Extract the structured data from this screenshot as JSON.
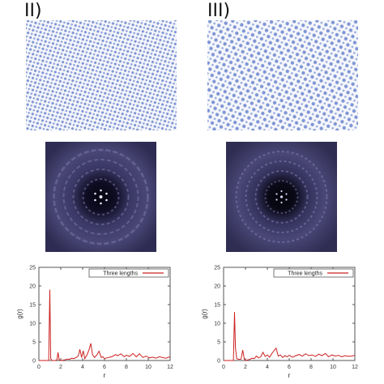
{
  "panels": [
    {
      "label": "II)",
      "chart_data": {
        "type": "line",
        "xlabel": "r",
        "ylabel": "g(r)",
        "xlim": [
          0,
          12
        ],
        "ylim": [
          0,
          25
        ],
        "xticks": [
          "0",
          "2",
          "4",
          "6",
          "8",
          "10",
          "12"
        ],
        "yticks": [
          "0",
          "5",
          "10",
          "15",
          "20",
          "25"
        ],
        "legend_position": "top-right",
        "series": [
          {
            "name": "Three lengths",
            "color": "#cc2222",
            "x": [
              0,
              0.9,
              1.0,
              1.08,
              1.2,
              1.5,
              1.65,
              1.75,
              1.85,
              2.0,
              2.4,
              2.6,
              2.8,
              3.0,
              3.2,
              3.4,
              3.6,
              3.75,
              3.9,
              4.05,
              4.2,
              4.4,
              4.6,
              4.75,
              4.9,
              5.1,
              5.3,
              5.5,
              5.7,
              5.85,
              6.0,
              6.2,
              6.5,
              6.8,
              7.0,
              7.2,
              7.5,
              7.8,
              8.0,
              8.3,
              8.6,
              8.9,
              9.2,
              9.5,
              9.8,
              10.1,
              10.4,
              10.7,
              11.0,
              11.3,
              11.6,
              12.0
            ],
            "y": [
              0,
              0,
              19.0,
              0.5,
              0,
              0,
              0.2,
              2.2,
              0.2,
              0,
              0.2,
              0.4,
              0.3,
              0.6,
              0.5,
              0.8,
              1.2,
              3.0,
              0.8,
              2.6,
              0.5,
              1.5,
              3.0,
              4.6,
              1.5,
              0.8,
              1.5,
              2.5,
              0.8,
              1.0,
              0.5,
              0.7,
              0.9,
              1.2,
              1.6,
              1.3,
              1.8,
              1.0,
              1.4,
              1.1,
              1.9,
              1.0,
              1.8,
              0.8,
              1.2,
              0.7,
              0.9,
              0.6,
              1.0,
              0.8,
              0.6,
              1.0
            ]
          }
        ]
      }
    },
    {
      "label": "III)",
      "chart_data": {
        "type": "line",
        "xlabel": "r",
        "ylabel": "g(r)",
        "xlim": [
          0,
          12
        ],
        "ylim": [
          0,
          25
        ],
        "xticks": [
          "0",
          "2",
          "4",
          "6",
          "8",
          "10",
          "12"
        ],
        "yticks": [
          "0",
          "5",
          "10",
          "15",
          "20",
          "25"
        ],
        "legend_position": "top-right",
        "series": [
          {
            "name": "Three lengths",
            "color": "#cc2222",
            "x": [
              0,
              0.9,
              1.0,
              1.08,
              1.2,
              1.4,
              1.6,
              1.75,
              1.9,
              2.0,
              2.4,
              2.6,
              2.8,
              3.0,
              3.2,
              3.4,
              3.6,
              3.8,
              4.0,
              4.2,
              4.4,
              4.6,
              4.8,
              5.0,
              5.2,
              5.4,
              5.6,
              5.8,
              6.0,
              6.3,
              6.6,
              6.9,
              7.2,
              7.5,
              7.8,
              8.1,
              8.4,
              8.7,
              9.0,
              9.3,
              9.6,
              9.9,
              10.2,
              10.5,
              10.8,
              11.1,
              11.4,
              11.7,
              12.0
            ],
            "y": [
              0,
              0,
              13.0,
              3.5,
              0.5,
              0.3,
              0.4,
              2.8,
              0.3,
              0,
              0.3,
              0.6,
              0.5,
              1.2,
              0.7,
              1.0,
              2.2,
              1.1,
              1.5,
              0.9,
              1.8,
              2.6,
              3.3,
              1.2,
              1.5,
              0.8,
              1.3,
              1.0,
              1.4,
              0.9,
              1.3,
              1.6,
              1.2,
              1.8,
              1.3,
              1.5,
              1.1,
              1.7,
              1.3,
              1.9,
              1.0,
              1.5,
              1.2,
              1.4,
              1.0,
              1.3,
              1.1,
              1.2,
              1.4
            ]
          }
        ]
      }
    }
  ],
  "colors": {
    "dots": "#7f96d4",
    "diffraction_dark": "#0c0a18",
    "diffraction_mid": "#3c3a6a",
    "axis": "#555555",
    "line": "#cc2222"
  }
}
